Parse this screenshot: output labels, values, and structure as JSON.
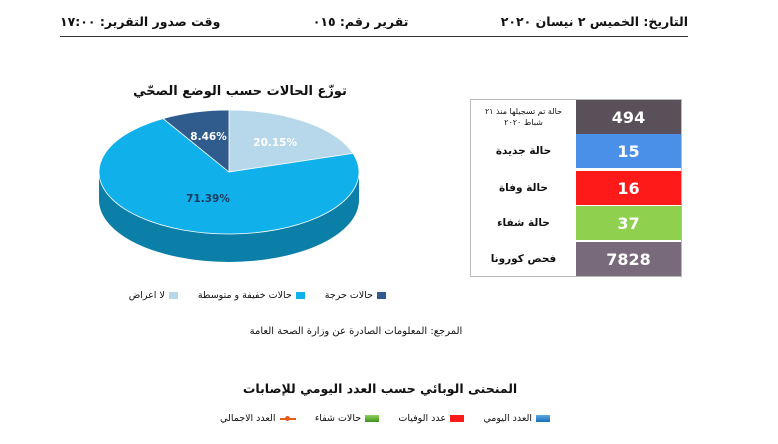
{
  "header": {
    "date": "التاريخ: الخميس ٢ نيسان ٢٠٢٠",
    "report_no": "تقرير رقم: ٠١٥",
    "time": "وقت صدور التقرير: ١٧:٠٠"
  },
  "stats": [
    {
      "label": "حالة تم تسجيلها منذ ٢١ شباط ٢٠٢٠",
      "value": "494",
      "color": "#595059",
      "label_small": true
    },
    {
      "label": "حالة جديدة",
      "value": "15",
      "color": "#4a90e8"
    },
    {
      "label": "حالة وفاة",
      "value": "16",
      "color": "#ff1a1a"
    },
    {
      "label": "حالة شفاء",
      "value": "37",
      "color": "#8fd14f"
    },
    {
      "label": "فحص كورونا",
      "value": "7828",
      "color": "#796a7b"
    }
  ],
  "reference": "المرجع: المعلومات الصادرة عن وزارة الصحة العامة",
  "chart_data": {
    "type": "pie",
    "title": "توزّع الحالات حسب الوضع الصحّي",
    "slices": [
      {
        "name": "لا اعراض",
        "value": 20.15,
        "label": "20.15%",
        "color": "#b7d7ea"
      },
      {
        "name": "حالات خفيفة و متوسطة",
        "value": 71.39,
        "label": "71.39%",
        "color": "#10b0ea"
      },
      {
        "name": "حالات حرجة",
        "value": 8.46,
        "label": "8.46%",
        "color": "#2f5c8c"
      }
    ],
    "legend_position": "bottom"
  },
  "curve": {
    "title": "المنحنى الوبائي حسب العدد اليومي للإصابات",
    "legend": [
      {
        "name": "العدد اليومي",
        "color": "#1a7fc9"
      },
      {
        "name": "عدد الوفيات",
        "color": "#ff1a1a"
      },
      {
        "name": "حالات شفاء",
        "color": "#5cb02a"
      },
      {
        "name": "العدد الاجمالي",
        "color": "#e65c1a"
      }
    ]
  }
}
